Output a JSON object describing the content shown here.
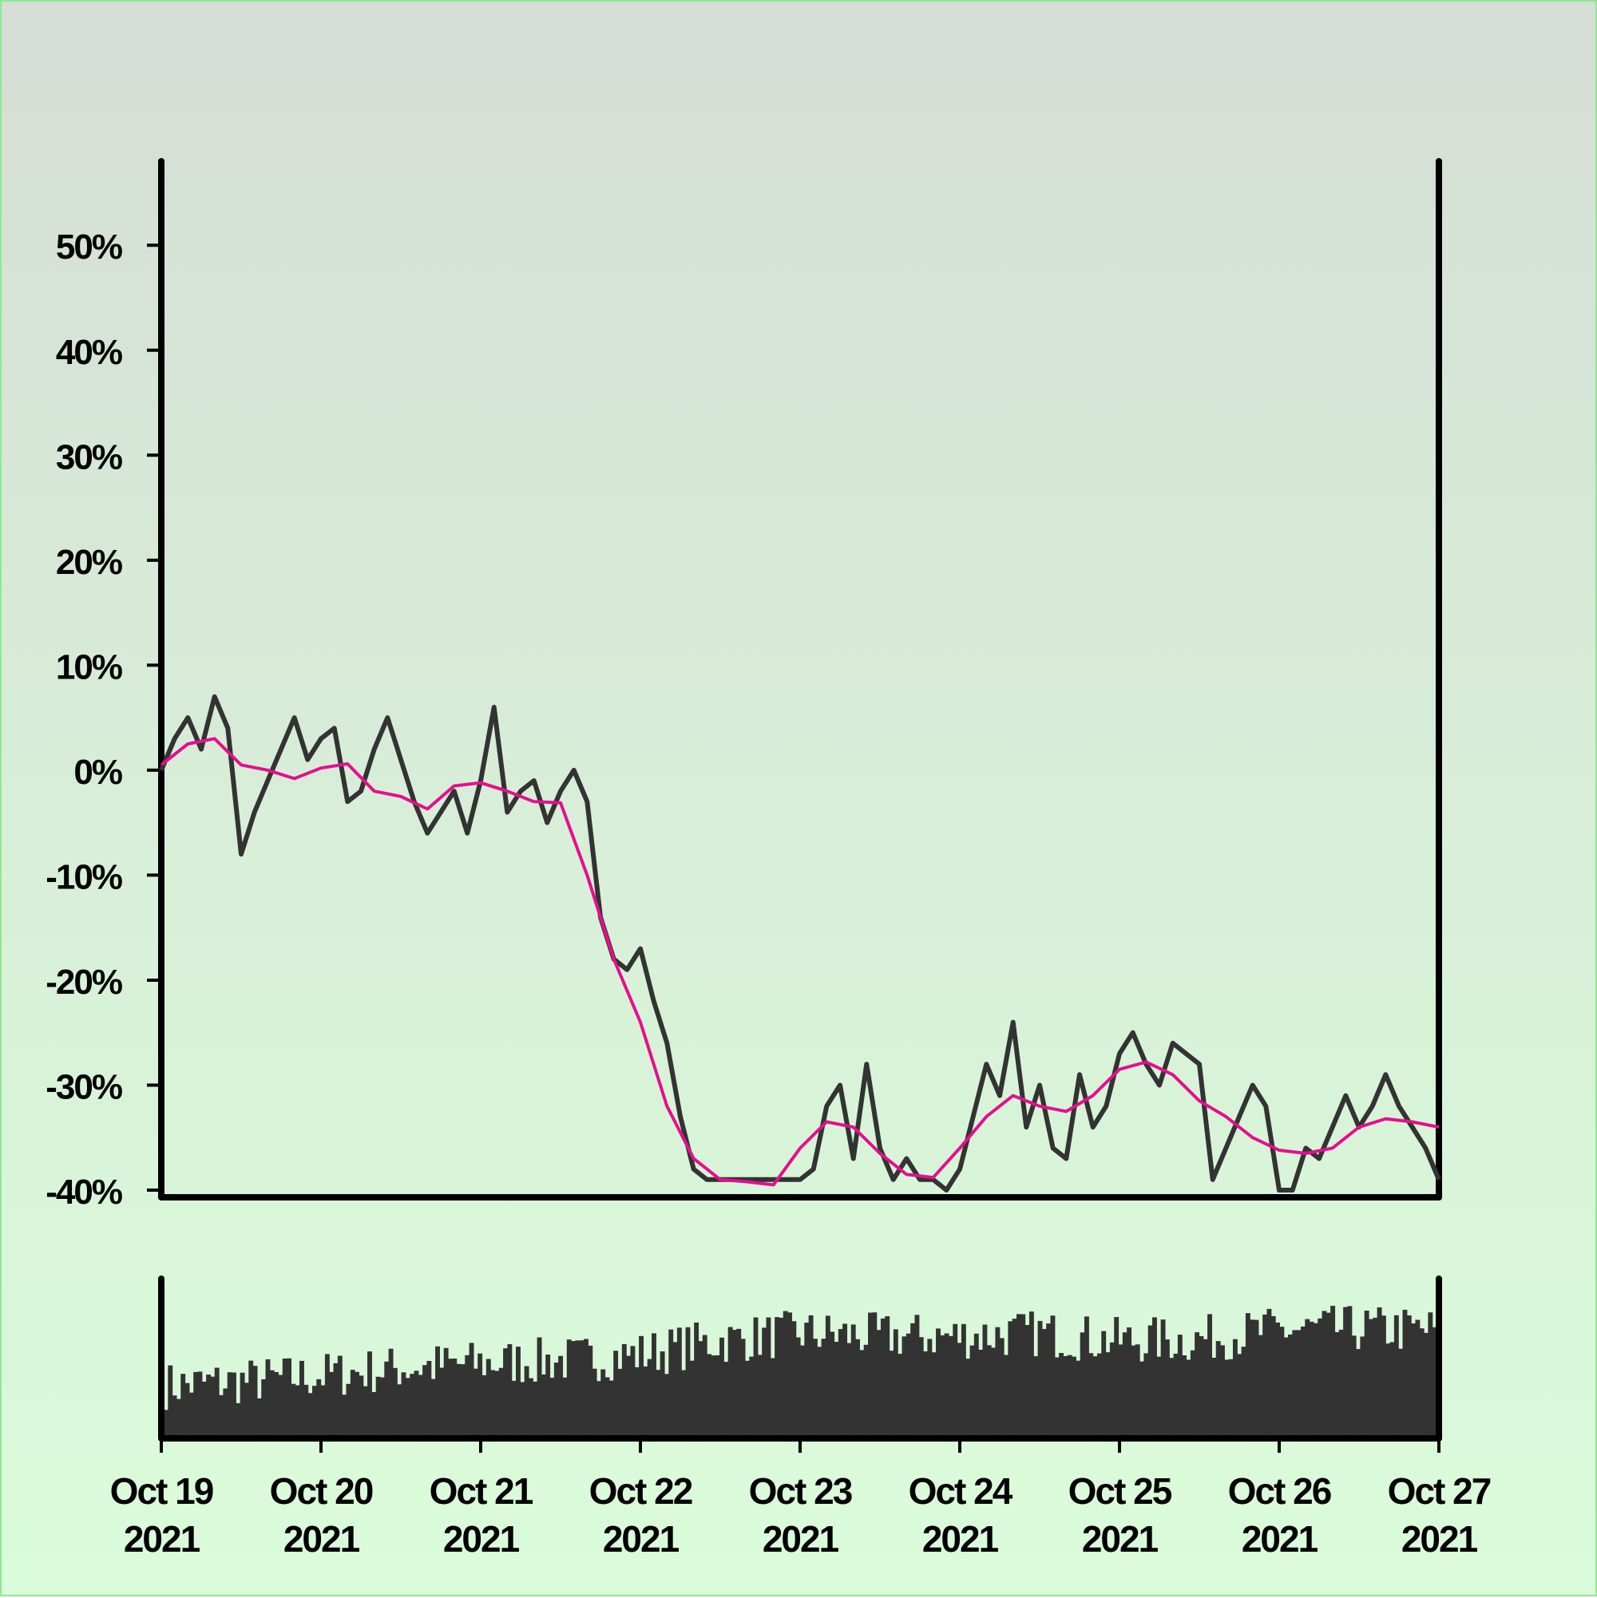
{
  "chart_data": [
    {
      "type": "line",
      "title": "",
      "xlabel": "",
      "ylabel": "",
      "x_range": [
        "2021-10-19",
        "2021-10-27"
      ],
      "ylim": [
        -40,
        58
      ],
      "y_ticks": [
        50,
        40,
        30,
        20,
        10,
        0,
        -10,
        -20,
        -30,
        -40
      ],
      "y_tick_labels": [
        "50%",
        "40%",
        "30%",
        "20%",
        "10%",
        "0%",
        "-10%",
        "-20%",
        "-30%",
        "-40%"
      ],
      "x_ticks": [
        "2021-10-19",
        "2021-10-20",
        "2021-10-21",
        "2021-10-22",
        "2021-10-23",
        "2021-10-24",
        "2021-10-25",
        "2021-10-26",
        "2021-10-27"
      ],
      "x_tick_labels": [
        [
          "Oct 19",
          "2021"
        ],
        [
          "Oct 20",
          "2021"
        ],
        [
          "Oct 21",
          "2021"
        ],
        [
          "Oct 22",
          "2021"
        ],
        [
          "Oct 23",
          "2021"
        ],
        [
          "Oct 24",
          "2021"
        ],
        [
          "Oct 25",
          "2021"
        ],
        [
          "Oct 26",
          "2021"
        ],
        [
          "Oct 27",
          "2021"
        ]
      ],
      "grid": false,
      "legend": "none",
      "series": [
        {
          "color": "#333333",
          "x": [
            "2021-10-19 00:00",
            "2021-10-19 02:00",
            "2021-10-19 04:00",
            "2021-10-19 06:00",
            "2021-10-19 08:00",
            "2021-10-19 10:00",
            "2021-10-19 12:00",
            "2021-10-19 14:00",
            "2021-10-19 16:00",
            "2021-10-19 18:00",
            "2021-10-19 20:00",
            "2021-10-19 22:00",
            "2021-10-20 00:00",
            "2021-10-20 02:00",
            "2021-10-20 04:00",
            "2021-10-20 06:00",
            "2021-10-20 08:00",
            "2021-10-20 10:00",
            "2021-10-20 12:00",
            "2021-10-20 14:00",
            "2021-10-20 16:00",
            "2021-10-20 18:00",
            "2021-10-20 20:00",
            "2021-10-20 22:00",
            "2021-10-21 00:00",
            "2021-10-21 02:00",
            "2021-10-21 04:00",
            "2021-10-21 06:00",
            "2021-10-21 08:00",
            "2021-10-21 10:00",
            "2021-10-21 12:00",
            "2021-10-21 14:00",
            "2021-10-21 16:00",
            "2021-10-21 18:00",
            "2021-10-21 20:00",
            "2021-10-21 22:00",
            "2021-10-22 00:00",
            "2021-10-22 02:00",
            "2021-10-22 04:00",
            "2021-10-22 06:00",
            "2021-10-22 08:00",
            "2021-10-22 10:00",
            "2021-10-22 12:00",
            "2021-10-22 14:00",
            "2021-10-22 16:00",
            "2021-10-22 18:00",
            "2021-10-22 20:00",
            "2021-10-22 22:00",
            "2021-10-23 00:00",
            "2021-10-23 02:00",
            "2021-10-23 04:00",
            "2021-10-23 06:00",
            "2021-10-23 08:00",
            "2021-10-23 10:00",
            "2021-10-23 12:00",
            "2021-10-23 14:00",
            "2021-10-23 16:00",
            "2021-10-23 18:00",
            "2021-10-23 20:00",
            "2021-10-23 22:00",
            "2021-10-24 00:00",
            "2021-10-24 02:00",
            "2021-10-24 04:00",
            "2021-10-24 06:00",
            "2021-10-24 08:00",
            "2021-10-24 10:00",
            "2021-10-24 12:00",
            "2021-10-24 14:00",
            "2021-10-24 16:00",
            "2021-10-24 18:00",
            "2021-10-24 20:00",
            "2021-10-24 22:00",
            "2021-10-25 00:00",
            "2021-10-25 02:00",
            "2021-10-25 04:00",
            "2021-10-25 06:00",
            "2021-10-25 08:00",
            "2021-10-25 10:00",
            "2021-10-25 12:00",
            "2021-10-25 14:00",
            "2021-10-25 16:00",
            "2021-10-25 18:00",
            "2021-10-25 20:00",
            "2021-10-25 22:00",
            "2021-10-26 00:00",
            "2021-10-26 02:00",
            "2021-10-26 04:00",
            "2021-10-26 06:00",
            "2021-10-26 08:00",
            "2021-10-26 10:00",
            "2021-10-26 12:00",
            "2021-10-26 14:00",
            "2021-10-26 16:00",
            "2021-10-26 18:00",
            "2021-10-26 20:00",
            "2021-10-26 22:00",
            "2021-10-27 00:00"
          ],
          "values": [
            0,
            3,
            5,
            2,
            7,
            4,
            -8,
            -4,
            -1,
            2,
            5,
            1,
            3,
            4,
            -3,
            -2,
            2,
            5,
            1,
            -3,
            -6,
            -4,
            -2,
            -6,
            -1,
            6,
            -4,
            -2,
            -1,
            -5,
            -2,
            0,
            -3,
            -14,
            -18,
            -19,
            -17,
            -22,
            -26,
            -33,
            -38,
            -39,
            -39,
            -39,
            -39,
            -39,
            -39,
            -39,
            -39,
            -38,
            -32,
            -30,
            -37,
            -28,
            -36,
            -39,
            -37,
            -39,
            -39,
            -40,
            -38,
            -33,
            -28,
            -31,
            -24,
            -34,
            -30,
            -36,
            -37,
            -29,
            -34,
            -32,
            -27,
            -25,
            -28,
            -30,
            -26,
            -27,
            -28,
            -39,
            -36,
            -33,
            -30,
            -32,
            -40,
            -40,
            -36,
            -37,
            -34,
            -31,
            -34,
            -32,
            -29,
            -32,
            -34,
            -36,
            -39
          ]
        },
        {
          "color": "#e60e8f",
          "x": [
            "2021-10-19 00:00",
            "2021-10-19 04:00",
            "2021-10-19 08:00",
            "2021-10-19 12:00",
            "2021-10-19 16:00",
            "2021-10-19 20:00",
            "2021-10-20 00:00",
            "2021-10-20 04:00",
            "2021-10-20 08:00",
            "2021-10-20 12:00",
            "2021-10-20 16:00",
            "2021-10-20 20:00",
            "2021-10-21 00:00",
            "2021-10-21 04:00",
            "2021-10-21 08:00",
            "2021-10-21 12:00",
            "2021-10-21 16:00",
            "2021-10-21 20:00",
            "2021-10-22 00:00",
            "2021-10-22 04:00",
            "2021-10-22 08:00",
            "2021-10-22 12:00",
            "2021-10-22 16:00",
            "2021-10-22 20:00",
            "2021-10-23 00:00",
            "2021-10-23 04:00",
            "2021-10-23 08:00",
            "2021-10-23 12:00",
            "2021-10-23 16:00",
            "2021-10-23 20:00",
            "2021-10-24 00:00",
            "2021-10-24 04:00",
            "2021-10-24 08:00",
            "2021-10-24 12:00",
            "2021-10-24 16:00",
            "2021-10-24 20:00",
            "2021-10-25 00:00",
            "2021-10-25 04:00",
            "2021-10-25 08:00",
            "2021-10-25 12:00",
            "2021-10-25 16:00",
            "2021-10-25 20:00",
            "2021-10-26 00:00",
            "2021-10-26 04:00",
            "2021-10-26 08:00",
            "2021-10-26 12:00",
            "2021-10-26 16:00",
            "2021-10-26 20:00",
            "2021-10-27 00:00"
          ],
          "values": [
            0.5,
            2.5,
            3,
            0.5,
            0,
            -0.8,
            0.2,
            0.6,
            -2,
            -2.5,
            -3.7,
            -1.5,
            -1.2,
            -2,
            -3,
            -3.1,
            -10,
            -18,
            -24,
            -32,
            -37,
            -39,
            -39.2,
            -39.5,
            -36,
            -33.5,
            -34,
            -36.5,
            -38.5,
            -38.8,
            -36,
            -33,
            -31,
            -32,
            -32.5,
            -31,
            -28.5,
            -27.8,
            -29,
            -31.5,
            -33,
            -35,
            -36.2,
            -36.5,
            -36,
            -34,
            -33.2,
            -33.5,
            -34
          ]
        }
      ]
    },
    {
      "type": "bar",
      "title": "",
      "xlabel": "",
      "ylabel": "",
      "x_range": [
        "2021-10-19",
        "2021-10-27"
      ],
      "y_ticks": [],
      "color": "#333333",
      "bar_count": 300,
      "values_relative": [
        0.35,
        0.38,
        0.42,
        0.47,
        0.5,
        0.52,
        0.56,
        0.65,
        0.7,
        0.68,
        0.68,
        0.7,
        0.65,
        0.66,
        0.72,
        0.73,
        0.72
      ],
      "values_relative_note": "relative bar height envelope at 0.5-day steps from Oct 19 to Oct 27"
    }
  ]
}
